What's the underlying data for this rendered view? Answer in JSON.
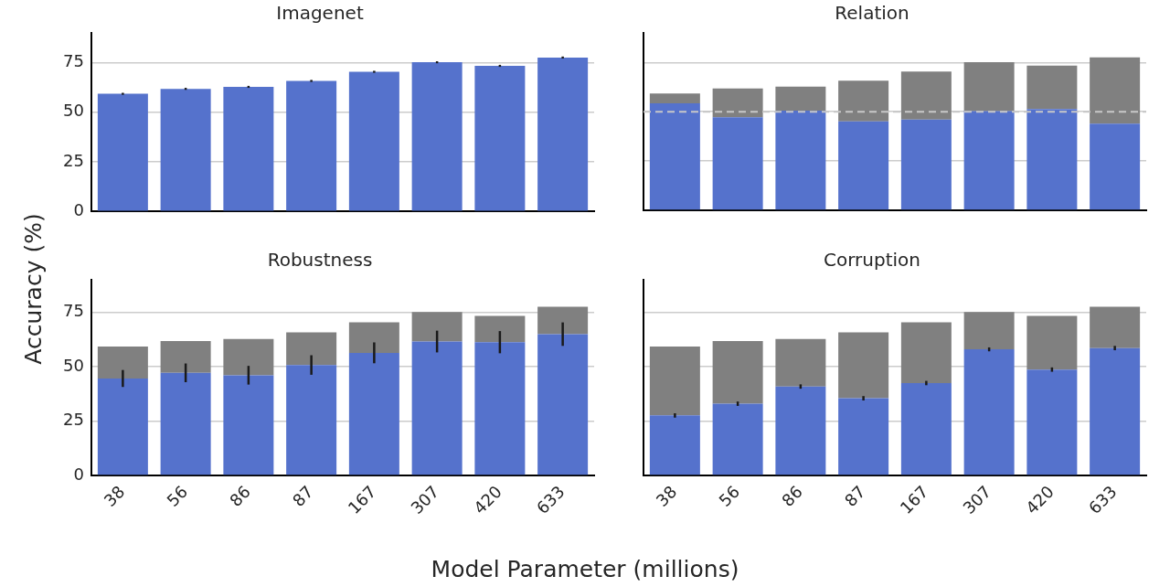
{
  "chart_data": [
    {
      "type": "bar",
      "title": "Imagenet",
      "ylabel": "Accuracy (%)",
      "categories": [
        "38",
        "56",
        "86",
        "87",
        "167",
        "307",
        "420",
        "633"
      ],
      "series": [
        {
          "color": "#5572cc",
          "values": [
            59.3,
            61.8,
            62.8,
            65.8,
            70.4,
            75.2,
            73.4,
            77.6
          ],
          "errors": [
            0.5,
            0.5,
            0.5,
            0.5,
            0.5,
            0.5,
            0.5,
            0.5
          ]
        }
      ],
      "ylim": [
        0,
        90
      ],
      "yticks": [
        0,
        25,
        50,
        75
      ],
      "grid": "y",
      "tick_labels": "y"
    },
    {
      "type": "bar",
      "title": "Relation",
      "categories": [
        "38",
        "56",
        "86",
        "87",
        "167",
        "307",
        "420",
        "633"
      ],
      "stacked": true,
      "series": [
        {
          "color": "#5572cc",
          "values": [
            54.3,
            47.2,
            50.6,
            45.1,
            46.1,
            50.3,
            51.4,
            43.9
          ]
        },
        {
          "color": "#808080",
          "values": [
            5.0,
            14.6,
            12.2,
            20.7,
            24.3,
            24.9,
            22.0,
            33.7
          ]
        }
      ],
      "ylim": [
        0,
        90
      ],
      "yticks": [
        0,
        25,
        50,
        75
      ],
      "grid": "y",
      "tick_labels": false,
      "ref_lines": [
        {
          "axis": "y",
          "value": 50,
          "color": "#c8c8c8",
          "line_style": "dashed"
        }
      ]
    },
    {
      "type": "bar",
      "title": "Robustness",
      "xlabel": "Model Parameter (millions)",
      "categories": [
        "38",
        "56",
        "86",
        "87",
        "167",
        "307",
        "420",
        "633"
      ],
      "stacked": true,
      "series": [
        {
          "color": "#5572cc",
          "values": [
            44.6,
            47.2,
            46.1,
            50.8,
            56.4,
            61.6,
            61.3,
            65.0
          ],
          "errors": [
            3.9,
            4.3,
            4.3,
            4.5,
            4.8,
            5.0,
            5.1,
            5.4
          ]
        },
        {
          "color": "#808080",
          "values": [
            14.7,
            14.6,
            16.7,
            15.0,
            14.0,
            13.6,
            12.1,
            12.6
          ]
        }
      ],
      "ylim": [
        0,
        90
      ],
      "yticks": [
        0,
        25,
        50,
        75
      ],
      "grid": "y"
    },
    {
      "type": "bar",
      "title": "Corruption",
      "categories": [
        "38",
        "56",
        "86",
        "87",
        "167",
        "307",
        "420",
        "633"
      ],
      "stacked": true,
      "series": [
        {
          "color": "#5572cc",
          "values": [
            27.6,
            33.0,
            40.9,
            35.5,
            42.5,
            58.0,
            48.7,
            58.6
          ],
          "errors": [
            1.0,
            1.0,
            1.0,
            1.0,
            1.0,
            0.9,
            1.0,
            1.0
          ]
        },
        {
          "color": "#808080",
          "values": [
            31.7,
            28.8,
            21.9,
            30.3,
            27.9,
            17.2,
            24.7,
            19.0
          ]
        }
      ],
      "ylim": [
        0,
        90
      ],
      "yticks": [
        0,
        25,
        50,
        75
      ],
      "grid": "y",
      "tick_labels": "x"
    }
  ]
}
